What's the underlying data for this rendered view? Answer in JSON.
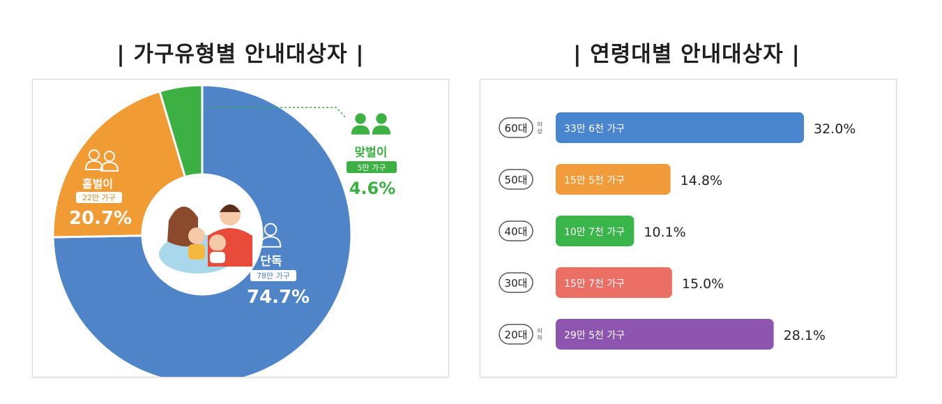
{
  "left_title": "| 가구유형별 안내대상자 |",
  "right_title": "| 연령대별 안내대상자 |",
  "colors": {
    "single": "#4f84c9",
    "single_parent": "#f09b33",
    "grandparent": "#3cb043",
    "age60": "#4a86d0",
    "age50": "#f29b3a",
    "age40": "#3ab54a",
    "age30": "#ec6f65",
    "age20": "#8e55b0"
  },
  "chart_data": [
    {
      "type": "pie",
      "title": "| 가구유형별 안내대상자 |",
      "slices": [
        {
          "key": "single",
          "name": "단독",
          "count_label": "78만 가구",
          "value": 74.7,
          "value_label": "74.7%"
        },
        {
          "key": "single_parent",
          "name": "홑벌이",
          "count_label": "22만 가구",
          "value": 20.7,
          "value_label": "20.7%"
        },
        {
          "key": "grandparent",
          "name": "맞벌이",
          "count_label": "5만 가구",
          "value": 4.6,
          "value_label": "4.6%"
        }
      ]
    },
    {
      "type": "bar",
      "title": "| 연령대별 안내대상자 |",
      "categories": [
        "60대",
        "50대",
        "40대",
        "30대",
        "20대"
      ],
      "category_suffix": [
        "이상",
        "",
        "",
        "",
        "이하"
      ],
      "bar_labels": [
        "33만 6천 가구",
        "15만 5천 가구",
        "10만 7천 가구",
        "15만 7천 가구",
        "29만 5천 가구"
      ],
      "values": [
        32.0,
        14.8,
        10.1,
        15.0,
        28.1
      ],
      "value_labels": [
        "32.0%",
        "14.8%",
        "10.1%",
        "15.0%",
        "28.1%"
      ],
      "color_keys": [
        "age60",
        "age50",
        "age40",
        "age30",
        "age20"
      ],
      "xlim": [
        0,
        32
      ]
    }
  ]
}
